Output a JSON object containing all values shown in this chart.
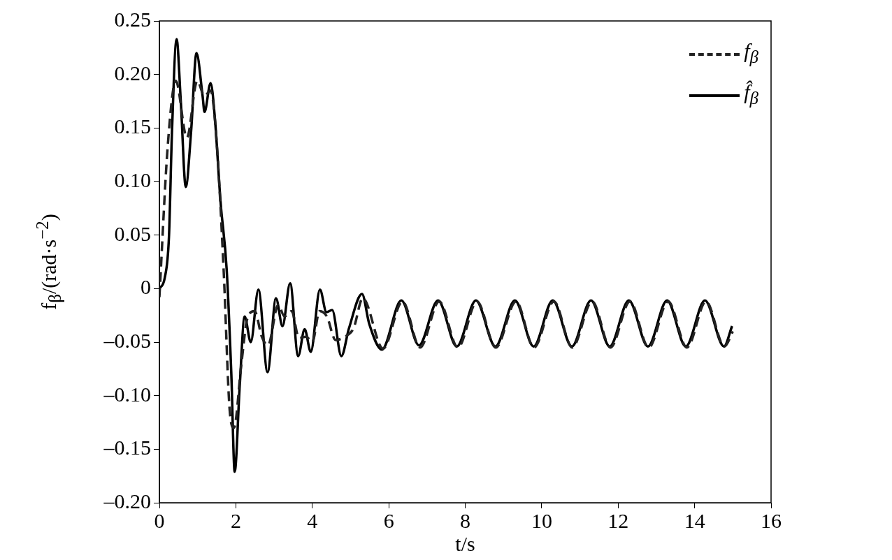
{
  "chart_data": {
    "type": "line",
    "xlabel": "t/s",
    "ylabel": "f$_{β}$/(rad·s$^{−2}$)",
    "xlim": [
      0,
      16
    ],
    "xticks": [
      0,
      2,
      4,
      6,
      8,
      10,
      12,
      14,
      16
    ],
    "ylim": [
      -0.2,
      0.25
    ],
    "yticks": [
      {
        "value": 0.25,
        "label": "0.25"
      },
      {
        "value": 0.2,
        "label": "0.20"
      },
      {
        "value": 0.15,
        "label": "0.15"
      },
      {
        "value": 0.1,
        "label": "0.10"
      },
      {
        "value": 0.05,
        "label": "0.05"
      },
      {
        "value": 0,
        "label": "0"
      },
      {
        "value": -0.05,
        "label": "–0.05"
      },
      {
        "value": -0.1,
        "label": "–0.10"
      },
      {
        "value": -0.15,
        "label": "–0.15"
      },
      {
        "value": -0.2,
        "label": "–0.20"
      }
    ],
    "grid": false,
    "legend": "top right",
    "marker": "none",
    "series": [
      {
        "name": "f$_{β}$",
        "color": "#222222",
        "line_style": "dashed",
        "x": [
          0,
          0.22,
          0.43,
          0.72,
          0.99,
          1.18,
          1.34,
          1.49,
          1.68,
          1.84,
          1.95,
          2.14,
          2.3,
          2.49,
          2.68,
          2.84,
          3.11,
          3.27,
          3.46,
          3.65,
          3.84,
          4.0,
          4.19,
          4.38,
          4.61,
          4.85,
          5.08,
          5.32,
          5.85,
          6.36,
          6.82,
          7.32,
          7.81,
          8.31,
          8.8,
          9.33,
          9.8,
          10.32,
          10.8,
          11.32,
          11.8,
          12.31,
          12.8,
          13.31,
          13.8,
          14.3,
          14.78,
          15.0
        ],
        "values": [
          -0.008,
          0.134,
          0.194,
          0.141,
          0.194,
          0.18,
          0.185,
          0.141,
          0.018,
          -0.114,
          -0.13,
          -0.072,
          -0.028,
          -0.021,
          -0.045,
          -0.053,
          -0.015,
          -0.026,
          -0.021,
          -0.046,
          -0.045,
          -0.05,
          -0.021,
          -0.026,
          -0.048,
          -0.045,
          -0.037,
          -0.009,
          -0.056,
          -0.012,
          -0.055,
          -0.012,
          -0.055,
          -0.012,
          -0.055,
          -0.012,
          -0.055,
          -0.012,
          -0.055,
          -0.012,
          -0.055,
          -0.012,
          -0.055,
          -0.012,
          -0.055,
          -0.012,
          -0.054,
          -0.04
        ]
      },
      {
        "name": "f̂$_{β}$",
        "color": "#000000",
        "line_style": "solid",
        "x": [
          0,
          0.14,
          0.25,
          0.33,
          0.45,
          0.56,
          0.69,
          0.83,
          0.97,
          1.13,
          1.18,
          1.34,
          1.45,
          1.6,
          1.76,
          1.88,
          1.97,
          2.1,
          2.23,
          2.39,
          2.59,
          2.83,
          3.05,
          3.22,
          3.42,
          3.63,
          3.8,
          3.96,
          4.2,
          4.37,
          4.52,
          4.76,
          4.96,
          5.3,
          5.49,
          5.82,
          6.33,
          6.79,
          7.29,
          7.78,
          8.28,
          8.79,
          9.3,
          9.79,
          10.29,
          10.79,
          11.29,
          11.78,
          12.28,
          12.78,
          13.28,
          13.77,
          14.27,
          14.77,
          14.98
        ],
        "values": [
          0,
          0.01,
          0.048,
          0.147,
          0.233,
          0.175,
          0.095,
          0.147,
          0.22,
          0.18,
          0.165,
          0.192,
          0.16,
          0.081,
          0.018,
          -0.078,
          -0.171,
          -0.092,
          -0.026,
          -0.05,
          -0.001,
          -0.078,
          -0.009,
          -0.035,
          0.005,
          -0.063,
          -0.038,
          -0.059,
          -0.001,
          -0.022,
          -0.02,
          -0.063,
          -0.037,
          -0.005,
          -0.033,
          -0.057,
          -0.011,
          -0.053,
          -0.011,
          -0.054,
          -0.011,
          -0.054,
          -0.011,
          -0.054,
          -0.011,
          -0.054,
          -0.011,
          -0.054,
          -0.011,
          -0.054,
          -0.011,
          -0.054,
          -0.011,
          -0.054,
          -0.035
        ]
      }
    ]
  }
}
